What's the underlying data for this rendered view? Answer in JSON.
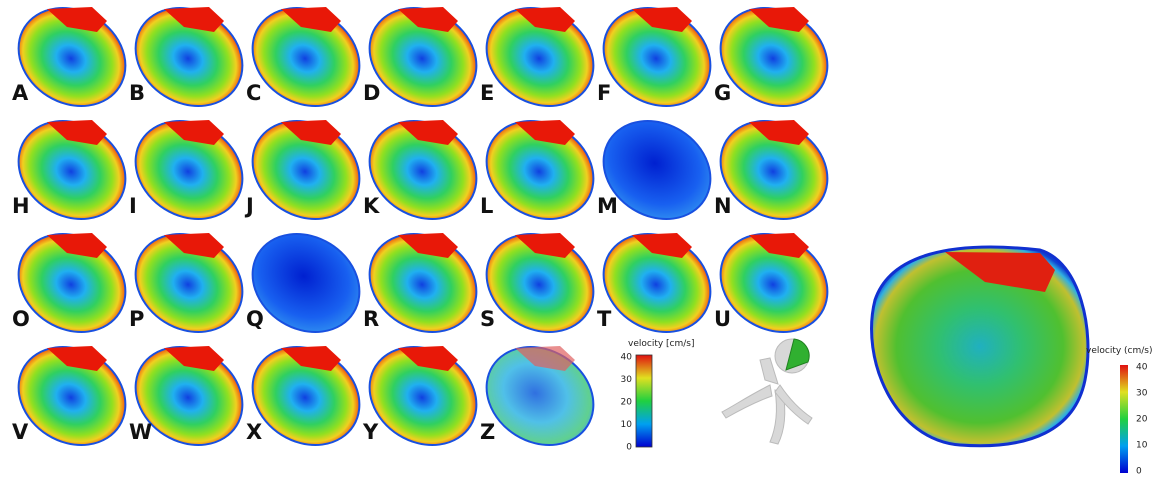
{
  "panels": [
    "A",
    "B",
    "C",
    "D",
    "E",
    "F",
    "G",
    "H",
    "I",
    "J",
    "K",
    "L",
    "M",
    "N",
    "O",
    "P",
    "Q",
    "R",
    "S",
    "T",
    "U",
    "V",
    "W",
    "X",
    "Y",
    "Z"
  ],
  "legend_small": {
    "title": "velocity [cm/s]",
    "ticks": [
      "40",
      "30",
      "20",
      "10",
      "0"
    ]
  },
  "legend_large": {
    "title": "velocity (cm/s)",
    "ticks": [
      "40",
      "30",
      "20",
      "10",
      "0"
    ]
  }
}
